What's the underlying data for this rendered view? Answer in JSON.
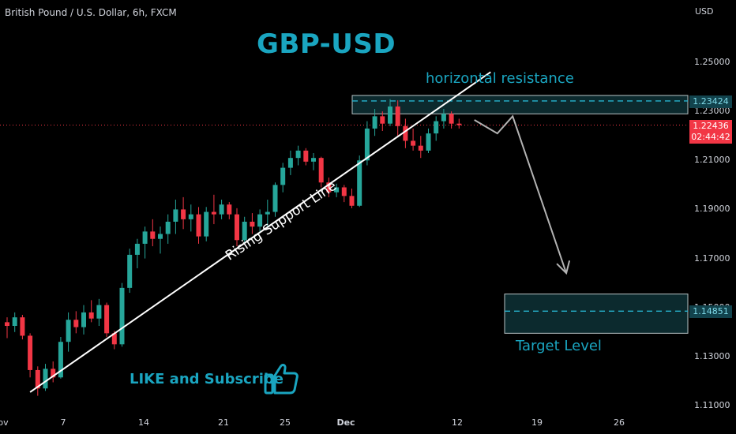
{
  "header": {
    "symbol": "British Pound / U.S. Dollar, 6h, FXCM",
    "title": "GBP-USD"
  },
  "annotations": {
    "resistance_label": "horizontal resistance",
    "support_label": "Rising Support Line",
    "target_label": "Target Level",
    "cta": "LIKE and Subscribe",
    "thumb_icon": "thumbs-up-icon"
  },
  "price_axis": {
    "unit": "USD",
    "ticks": [
      "1.25000",
      "1.23000",
      "1.21000",
      "1.19000",
      "1.17000",
      "1.15000",
      "1.13000",
      "1.11000"
    ],
    "resistance_price": "1.23424",
    "current_price": "1.22436",
    "countdown": "02:44:42",
    "target_price": "1.14851"
  },
  "time_axis": {
    "ticks": [
      "ov",
      "7",
      "14",
      "21",
      "25",
      "Dec",
      "12",
      "19",
      "26"
    ]
  },
  "colors": {
    "up": "#26a69a",
    "down": "#f23645",
    "accent": "#1aa5c0",
    "zone_fill": "#0c2a2e",
    "background": "#000000"
  },
  "chart_data": {
    "type": "candlestick",
    "instrument": "GBP/USD",
    "timeframe": "6h",
    "ylim": [
      1.105,
      1.265
    ],
    "support_line": {
      "from": [
        3,
        1.1155
      ],
      "to": [
        59,
        1.238
      ]
    },
    "resistance_zone": {
      "low": 1.229,
      "high": 1.2365,
      "level": 1.23424
    },
    "target_zone": {
      "low": 1.1395,
      "high": 1.1555,
      "level": 1.14851
    },
    "projection": [
      [
        61,
        1.2265
      ],
      [
        64,
        1.221
      ],
      [
        66,
        1.228
      ],
      [
        73,
        1.164
      ]
    ],
    "candles": [
      [
        1.144,
        1.146,
        1.1375,
        1.1425
      ],
      [
        1.1425,
        1.148,
        1.14,
        1.146
      ],
      [
        1.146,
        1.147,
        1.137,
        1.1385
      ],
      [
        1.1385,
        1.1395,
        1.1215,
        1.1245
      ],
      [
        1.1245,
        1.126,
        1.114,
        1.117
      ],
      [
        1.117,
        1.127,
        1.116,
        1.125
      ],
      [
        1.125,
        1.128,
        1.1195,
        1.1215
      ],
      [
        1.1215,
        1.138,
        1.121,
        1.136
      ],
      [
        1.136,
        1.148,
        1.132,
        1.145
      ],
      [
        1.145,
        1.1485,
        1.1395,
        1.142
      ],
      [
        1.142,
        1.151,
        1.139,
        1.148
      ],
      [
        1.148,
        1.153,
        1.144,
        1.1455
      ],
      [
        1.1455,
        1.1535,
        1.1425,
        1.151
      ],
      [
        1.151,
        1.152,
        1.138,
        1.1395
      ],
      [
        1.1395,
        1.1405,
        1.133,
        1.135
      ],
      [
        1.135,
        1.16,
        1.134,
        1.158
      ],
      [
        1.158,
        1.174,
        1.156,
        1.1715
      ],
      [
        1.1715,
        1.178,
        1.166,
        1.176
      ],
      [
        1.176,
        1.183,
        1.17,
        1.181
      ],
      [
        1.181,
        1.186,
        1.175,
        1.178
      ],
      [
        1.178,
        1.183,
        1.172,
        1.18
      ],
      [
        1.18,
        1.188,
        1.176,
        1.185
      ],
      [
        1.185,
        1.194,
        1.18,
        1.19
      ],
      [
        1.19,
        1.195,
        1.182,
        1.186
      ],
      [
        1.186,
        1.192,
        1.181,
        1.188
      ],
      [
        1.188,
        1.191,
        1.176,
        1.179
      ],
      [
        1.179,
        1.191,
        1.177,
        1.189
      ],
      [
        1.189,
        1.196,
        1.184,
        1.188
      ],
      [
        1.188,
        1.194,
        1.186,
        1.192
      ],
      [
        1.192,
        1.193,
        1.186,
        1.188
      ],
      [
        1.188,
        1.1905,
        1.175,
        1.1775
      ],
      [
        1.1775,
        1.187,
        1.176,
        1.185
      ],
      [
        1.185,
        1.1885,
        1.18,
        1.183
      ],
      [
        1.183,
        1.19,
        1.181,
        1.188
      ],
      [
        1.188,
        1.194,
        1.183,
        1.189
      ],
      [
        1.189,
        1.201,
        1.187,
        1.2
      ],
      [
        1.2,
        1.209,
        1.197,
        1.207
      ],
      [
        1.207,
        1.214,
        1.204,
        1.211
      ],
      [
        1.211,
        1.216,
        1.208,
        1.214
      ],
      [
        1.214,
        1.215,
        1.208,
        1.2095
      ],
      [
        1.2095,
        1.213,
        1.206,
        1.211
      ],
      [
        1.211,
        1.2115,
        1.199,
        1.201
      ],
      [
        1.201,
        1.203,
        1.195,
        1.197
      ],
      [
        1.197,
        1.2005,
        1.195,
        1.199
      ],
      [
        1.199,
        1.2,
        1.193,
        1.1955
      ],
      [
        1.1955,
        1.1985,
        1.1905,
        1.1915
      ],
      [
        1.1915,
        1.212,
        1.191,
        1.21
      ],
      [
        1.21,
        1.226,
        1.208,
        1.223
      ],
      [
        1.223,
        1.231,
        1.22,
        1.228
      ],
      [
        1.228,
        1.23,
        1.222,
        1.225
      ],
      [
        1.225,
        1.235,
        1.224,
        1.232
      ],
      [
        1.232,
        1.2345,
        1.22,
        1.224
      ],
      [
        1.224,
        1.227,
        1.215,
        1.218
      ],
      [
        1.218,
        1.223,
        1.214,
        1.216
      ],
      [
        1.216,
        1.22,
        1.211,
        1.214
      ],
      [
        1.214,
        1.223,
        1.213,
        1.221
      ],
      [
        1.221,
        1.228,
        1.218,
        1.226
      ],
      [
        1.226,
        1.231,
        1.223,
        1.229
      ],
      [
        1.229,
        1.23,
        1.223,
        1.225
      ],
      [
        1.225,
        1.227,
        1.223,
        1.2244
      ]
    ]
  }
}
